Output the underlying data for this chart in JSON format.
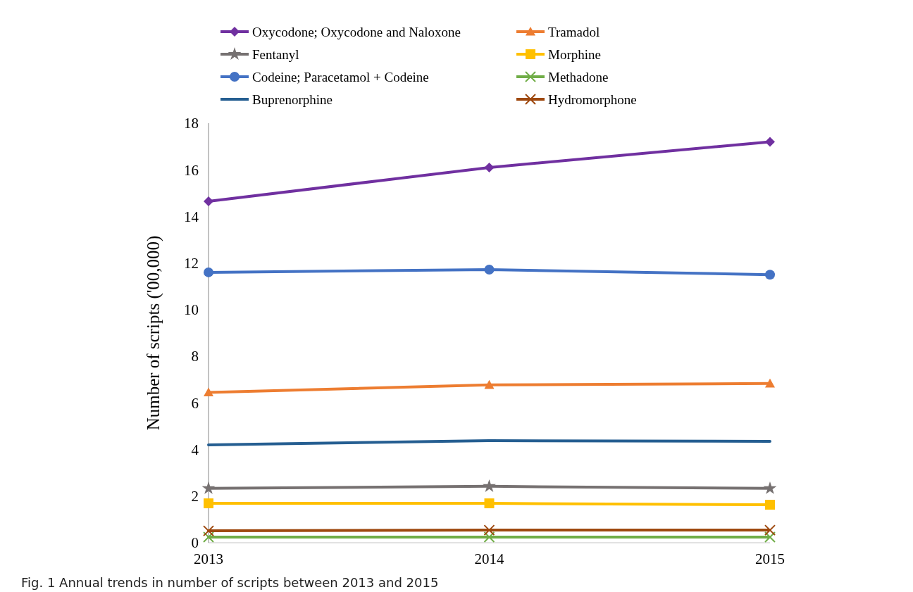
{
  "chart_data": {
    "type": "line",
    "ylabel": "Number of scripts ('00,000)",
    "categories": [
      "2013",
      "2014",
      "2015"
    ],
    "ylim": [
      0,
      18
    ],
    "yticks": [
      0,
      2,
      4,
      6,
      8,
      10,
      12,
      14,
      16,
      18
    ],
    "grid": false,
    "legend": "top",
    "annotations": [
      "Fig. 1 Annual trends in number of scripts between 2013 and 2015"
    ],
    "series": [
      {
        "name": "Oxycodone; Oxycodone and Naloxone",
        "color": "#7030a0",
        "marker": "diamond",
        "values": [
          14.65,
          16.1,
          17.2
        ]
      },
      {
        "name": "Tramadol",
        "color": "#ed7d31",
        "marker": "triangle",
        "values": [
          6.45,
          6.77,
          6.83
        ]
      },
      {
        "name": "Fentanyl",
        "color": "#767171",
        "marker": "star",
        "values": [
          2.33,
          2.42,
          2.33
        ]
      },
      {
        "name": "Morphine",
        "color": "#ffc000",
        "marker": "square",
        "values": [
          1.69,
          1.69,
          1.63
        ]
      },
      {
        "name": "Codeine; Paracetamol + Codeine",
        "color": "#4472c4",
        "marker": "circle",
        "values": [
          11.6,
          11.72,
          11.5
        ]
      },
      {
        "name": "Methadone",
        "color": "#70ad47",
        "marker": "cross",
        "values": [
          0.24,
          0.24,
          0.24
        ]
      },
      {
        "name": "Buprenorphine",
        "color": "#255e91",
        "marker": "none",
        "values": [
          4.2,
          4.38,
          4.35
        ]
      },
      {
        "name": "Hydromorphone",
        "color": "#9e480e",
        "marker": "cross",
        "values": [
          0.51,
          0.54,
          0.54
        ]
      }
    ]
  }
}
